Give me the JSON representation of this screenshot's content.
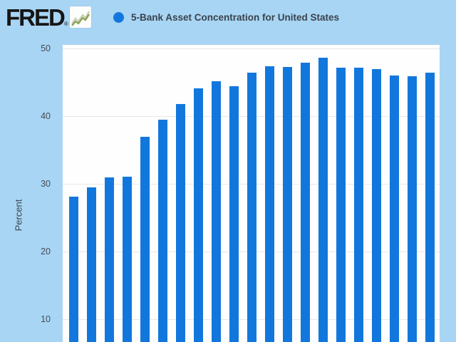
{
  "header": {
    "logo_text": "FRED",
    "registered_mark": "®",
    "logo_sparkline_icon": "green-line-chart-icon",
    "legend": {
      "marker_color": "#1277dd",
      "series_label": "5-Bank Asset Concentration for United States"
    }
  },
  "chart": {
    "y_axis_label": "Percent",
    "y_tick_labels": [
      "50",
      "40",
      "30",
      "20",
      "10"
    ]
  },
  "colors": {
    "page_background": "#a8d5f4",
    "plot_background": "#fefefe",
    "bar": "#1277dd",
    "gridline": "#e8e8e8",
    "text": "#3a424c",
    "logo": "#161616"
  },
  "chart_data": {
    "type": "bar",
    "title": "5-Bank Asset Concentration for United States",
    "xlabel": "",
    "ylabel": "Percent",
    "y_ticks": [
      50,
      40,
      30,
      20,
      10
    ],
    "values": [
      28.1,
      29.5,
      30.9,
      31.1,
      36.9,
      39.5,
      41.8,
      44.1,
      45.2,
      44.4,
      46.4,
      47.4,
      47.3,
      47.9,
      48.6,
      47.2,
      47.2,
      46.9,
      46.0,
      45.9,
      46.4
    ],
    "x_tick_labels_visible": false,
    "grid": true,
    "legend_position": "top",
    "layout_hints": {
      "bottom_of_plot_cropped_by_viewport": true,
      "visible_y_range_top": 50
    }
  }
}
